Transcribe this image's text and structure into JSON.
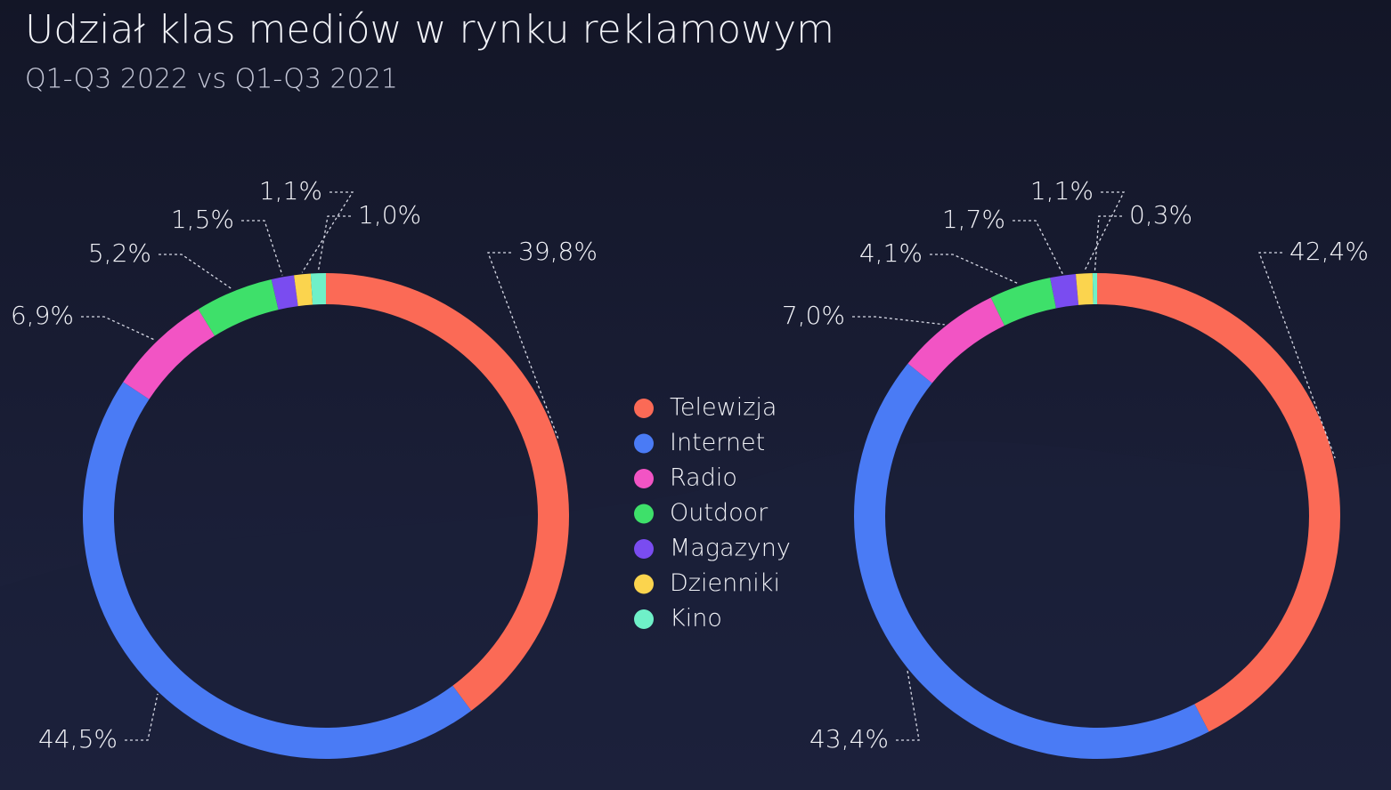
{
  "header": {
    "title": "Udział klas mediów w rynku reklamowym",
    "subtitle": "Q1-Q3 2022 vs Q1-Q3 2021"
  },
  "chart_data": [
    {
      "type": "donut",
      "categories": [
        "Telewizja",
        "Internet",
        "Radio",
        "Outdoor",
        "Magazyny",
        "Dzienniki",
        "Kino"
      ],
      "values": [
        39.8,
        44.5,
        6.9,
        5.2,
        1.5,
        1.1,
        1.0
      ],
      "value_labels": [
        "39,8%",
        "44,5%",
        "6,9%",
        "5,2%",
        "1,5%",
        "1,1%",
        "1,0%"
      ],
      "colors": [
        "#fb6a56",
        "#4a7bf5",
        "#f254c4",
        "#3ee06a",
        "#7a4cf0",
        "#fbd44e",
        "#6ff0c8"
      ]
    },
    {
      "type": "donut",
      "categories": [
        "Telewizja",
        "Internet",
        "Radio",
        "Outdoor",
        "Magazyny",
        "Dzienniki",
        "Kino"
      ],
      "values": [
        42.4,
        43.4,
        7.0,
        4.1,
        1.7,
        1.1,
        0.3
      ],
      "value_labels": [
        "42,4%",
        "43,4%",
        "7,0%",
        "4,1%",
        "1,7%",
        "1,1%",
        "0,3%"
      ],
      "colors": [
        "#fb6a56",
        "#4a7bf5",
        "#f254c4",
        "#3ee06a",
        "#7a4cf0",
        "#fbd44e",
        "#6ff0c8"
      ]
    }
  ]
}
